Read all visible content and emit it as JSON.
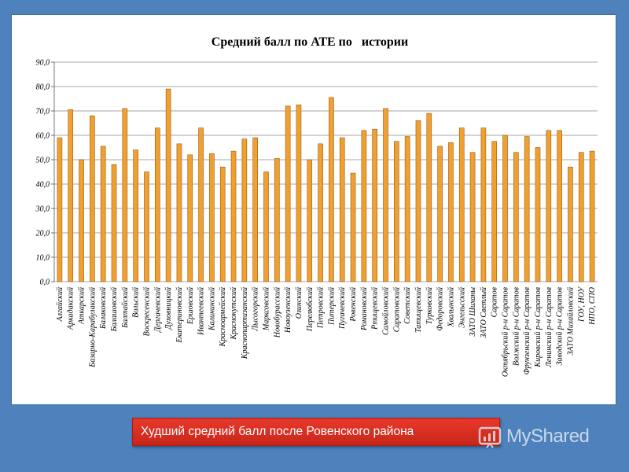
{
  "slide": {
    "caption": "Худший средний балл после Ровенского района",
    "watermark": "MyShared",
    "background_color": "#4f81bd",
    "caption_color": "#d92f22"
  },
  "chart_data": {
    "type": "bar",
    "title": "Средний балл по АТЕ по   истории",
    "xlabel": "",
    "ylabel": "",
    "ylim": [
      0,
      90
    ],
    "yticks": [
      "0,0",
      "10,0",
      "20,0",
      "30,0",
      "40,0",
      "50,0",
      "60,0",
      "70,0",
      "80,0",
      "90,0"
    ],
    "grid": true,
    "legend": "none",
    "bar_color": "#f0a030",
    "categories": [
      "Алгайский",
      "Аркадакский",
      "Аткарский",
      "Базарно-Карабулакский",
      "Балаковский",
      "Балашовский",
      "Балтайский",
      "Вольский",
      "Воскресенский",
      "Дергачевский",
      "Духовницкий",
      "Екатериновский",
      "Ершовский",
      "Ивантеевский",
      "Калининский",
      "Красноармейский",
      "Краснокутский",
      "Краснопартизанский",
      "Лысогорский",
      "Марксовский",
      "Новобурасский",
      "Новоузенский",
      "Озинский",
      "Перелюбский",
      "Петровский",
      "Питерский",
      "Пугачевский",
      "Ровенский",
      "Романовский",
      "Ртищевский",
      "Самойловский",
      "Саратовский",
      "Советский",
      "Татищевский",
      "Турковский",
      "Федоровский",
      "Хвалынский",
      "Энгельсский",
      "ЗАТО Шиханы",
      "ЗАТО Светлый",
      "Саратов",
      "Октябрьский р-н Саратов",
      "Волжский р-н Саратов",
      "Фрунзенский р-н Саратов",
      "Кировский р-н Саратов",
      "Ленинский р-н Саратов",
      "Заводской р-н Саратов",
      "ЗАТО Михайловский",
      "ГОУ, НОУ",
      "НПО, СПО"
    ],
    "values": [
      59,
      70.5,
      50,
      68,
      55.5,
      48,
      71,
      54,
      45,
      63,
      79,
      56.5,
      52,
      63,
      52.5,
      47,
      53.5,
      58.5,
      59,
      45,
      50.5,
      72,
      72.5,
      50,
      56.5,
      75.5,
      59,
      44.5,
      62,
      62.5,
      71,
      57.5,
      59.5,
      66,
      69,
      55.5,
      57,
      63,
      53,
      63,
      57.5,
      60,
      53,
      59.5,
      55,
      62,
      62,
      47,
      53,
      53.5
    ]
  }
}
